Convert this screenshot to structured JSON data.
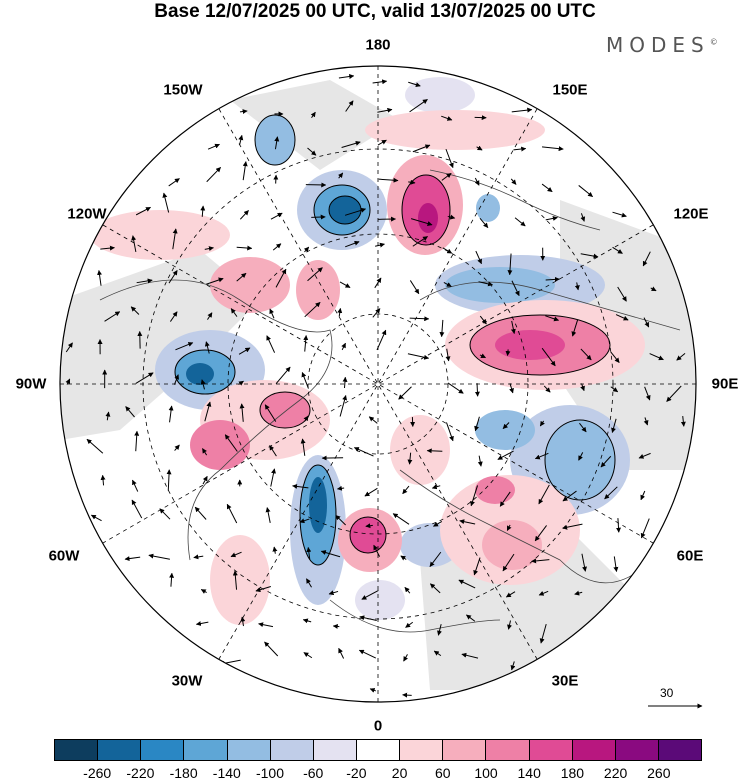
{
  "title": "Base 12/07/2025 00 UTC, valid 13/07/2025 00 UTC",
  "brand": "MODES",
  "brand_mark": "©",
  "longitudes": {
    "top": "180",
    "bottom": "0",
    "left": "90W",
    "right": "90E",
    "upper_left_1": "150W",
    "upper_left_2": "120W",
    "upper_right_1": "150E",
    "upper_right_2": "120E",
    "lower_left_1": "60W",
    "lower_left_2": "30W",
    "lower_right_1": "60E",
    "lower_right_2": "30E"
  },
  "reference_vector": "30",
  "colorbar": {
    "colors": [
      "#0d3d5e",
      "#13649a",
      "#2a87c4",
      "#5ea6d6",
      "#93bde2",
      "#c0cde8",
      "#e4e2f1",
      "#ffffff",
      "#fbd5d9",
      "#f6aebd",
      "#ee80a6",
      "#e04b95",
      "#b8177f",
      "#8a0a80",
      "#5b0a78"
    ],
    "ticks": [
      "-260",
      "-220",
      "-180",
      "-140",
      "-100",
      "-60",
      "-20",
      "20",
      "60",
      "100",
      "140",
      "180",
      "220",
      "260"
    ]
  }
}
